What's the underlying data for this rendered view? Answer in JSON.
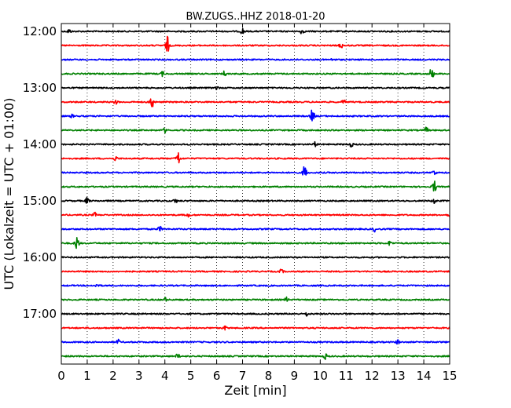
{
  "chart_data": {
    "type": "line",
    "title": "BW.ZUGS..HHZ 2018-01-20",
    "xlabel": "Zeit  [min]",
    "ylabel": "UTC (Lokalzeit = UTC + 01:00)",
    "xlim": [
      0,
      15
    ],
    "x_ticks": [
      "0",
      "1",
      "2",
      "3",
      "4",
      "5",
      "6",
      "7",
      "8",
      "9",
      "10",
      "11",
      "12",
      "13",
      "14",
      "15"
    ],
    "y_ticks": [
      {
        "label": "12:00",
        "trace": 0
      },
      {
        "label": "13:00",
        "trace": 4
      },
      {
        "label": "14:00",
        "trace": 8
      },
      {
        "label": "15:00",
        "trace": 12
      },
      {
        "label": "16:00",
        "trace": 16
      },
      {
        "label": "17:00",
        "trace": 20
      }
    ],
    "trace_interval_min": 15,
    "trace_count": 24,
    "trace_colors": [
      "#000000",
      "#ff0000",
      "#0000ff",
      "#008000"
    ],
    "grid": true,
    "grid_style": "dotted vertical",
    "series": [
      {
        "start": "12:00",
        "color": "#000000",
        "events": [
          [
            0.3,
            0.4
          ],
          [
            7.0,
            0.6
          ],
          [
            9.3,
            0.5
          ]
        ]
      },
      {
        "start": "12:15",
        "color": "#ff0000",
        "events": [
          [
            4.1,
            1.6
          ],
          [
            10.8,
            0.5
          ]
        ]
      },
      {
        "start": "12:30",
        "color": "#0000ff",
        "events": [
          [
            10.5,
            0.3
          ]
        ]
      },
      {
        "start": "12:45",
        "color": "#008000",
        "events": [
          [
            3.9,
            0.4
          ],
          [
            6.3,
            0.5
          ],
          [
            14.3,
            1.4
          ]
        ]
      },
      {
        "start": "13:00",
        "color": "#000000",
        "events": [
          [
            6.0,
            0.3
          ]
        ]
      },
      {
        "start": "13:15",
        "color": "#ff0000",
        "events": [
          [
            2.1,
            0.4
          ],
          [
            3.5,
            1.6
          ],
          [
            10.9,
            0.4
          ]
        ]
      },
      {
        "start": "13:30",
        "color": "#0000ff",
        "events": [
          [
            0.4,
            0.3
          ],
          [
            9.7,
            1.5
          ]
        ]
      },
      {
        "start": "13:45",
        "color": "#008000",
        "events": [
          [
            4.0,
            0.4
          ],
          [
            14.1,
            0.5
          ]
        ]
      },
      {
        "start": "14:00",
        "color": "#000000",
        "events": [
          [
            9.8,
            0.4
          ],
          [
            11.2,
            0.4
          ]
        ]
      },
      {
        "start": "14:15",
        "color": "#ff0000",
        "events": [
          [
            2.1,
            0.4
          ],
          [
            4.5,
            1.6
          ]
        ]
      },
      {
        "start": "14:30",
        "color": "#0000ff",
        "events": [
          [
            9.4,
            1.5
          ],
          [
            14.4,
            0.5
          ]
        ]
      },
      {
        "start": "14:45",
        "color": "#008000",
        "events": [
          [
            14.4,
            1.3
          ]
        ]
      },
      {
        "start": "15:00",
        "color": "#000000",
        "events": [
          [
            1.0,
            0.6
          ],
          [
            4.4,
            0.4
          ],
          [
            14.4,
            0.5
          ]
        ]
      },
      {
        "start": "15:15",
        "color": "#ff0000",
        "events": [
          [
            1.3,
            0.4
          ],
          [
            4.9,
            0.4
          ],
          [
            15.0,
            0.4
          ]
        ]
      },
      {
        "start": "15:30",
        "color": "#0000ff",
        "events": [
          [
            3.8,
            0.5
          ],
          [
            12.1,
            0.4
          ]
        ]
      },
      {
        "start": "15:45",
        "color": "#008000",
        "events": [
          [
            0.6,
            1.5
          ],
          [
            12.7,
            0.5
          ]
        ]
      },
      {
        "start": "16:00",
        "color": "#000000",
        "events": []
      },
      {
        "start": "16:15",
        "color": "#ff0000",
        "events": [
          [
            8.5,
            0.4
          ]
        ]
      },
      {
        "start": "16:30",
        "color": "#0000ff",
        "events": [
          [
            1.4,
            0.4
          ]
        ]
      },
      {
        "start": "16:45",
        "color": "#008000",
        "events": [
          [
            4.0,
            0.4
          ],
          [
            8.7,
            0.4
          ]
        ]
      },
      {
        "start": "17:00",
        "color": "#000000",
        "events": [
          [
            9.5,
            0.4
          ]
        ]
      },
      {
        "start": "17:15",
        "color": "#ff0000",
        "events": [
          [
            6.3,
            0.4
          ]
        ]
      },
      {
        "start": "17:30",
        "color": "#0000ff",
        "events": [
          [
            2.2,
            0.4
          ],
          [
            13.0,
            0.4
          ]
        ]
      },
      {
        "start": "17:45",
        "color": "#008000",
        "events": [
          [
            4.5,
            0.5
          ],
          [
            10.2,
            0.5
          ]
        ]
      }
    ]
  }
}
